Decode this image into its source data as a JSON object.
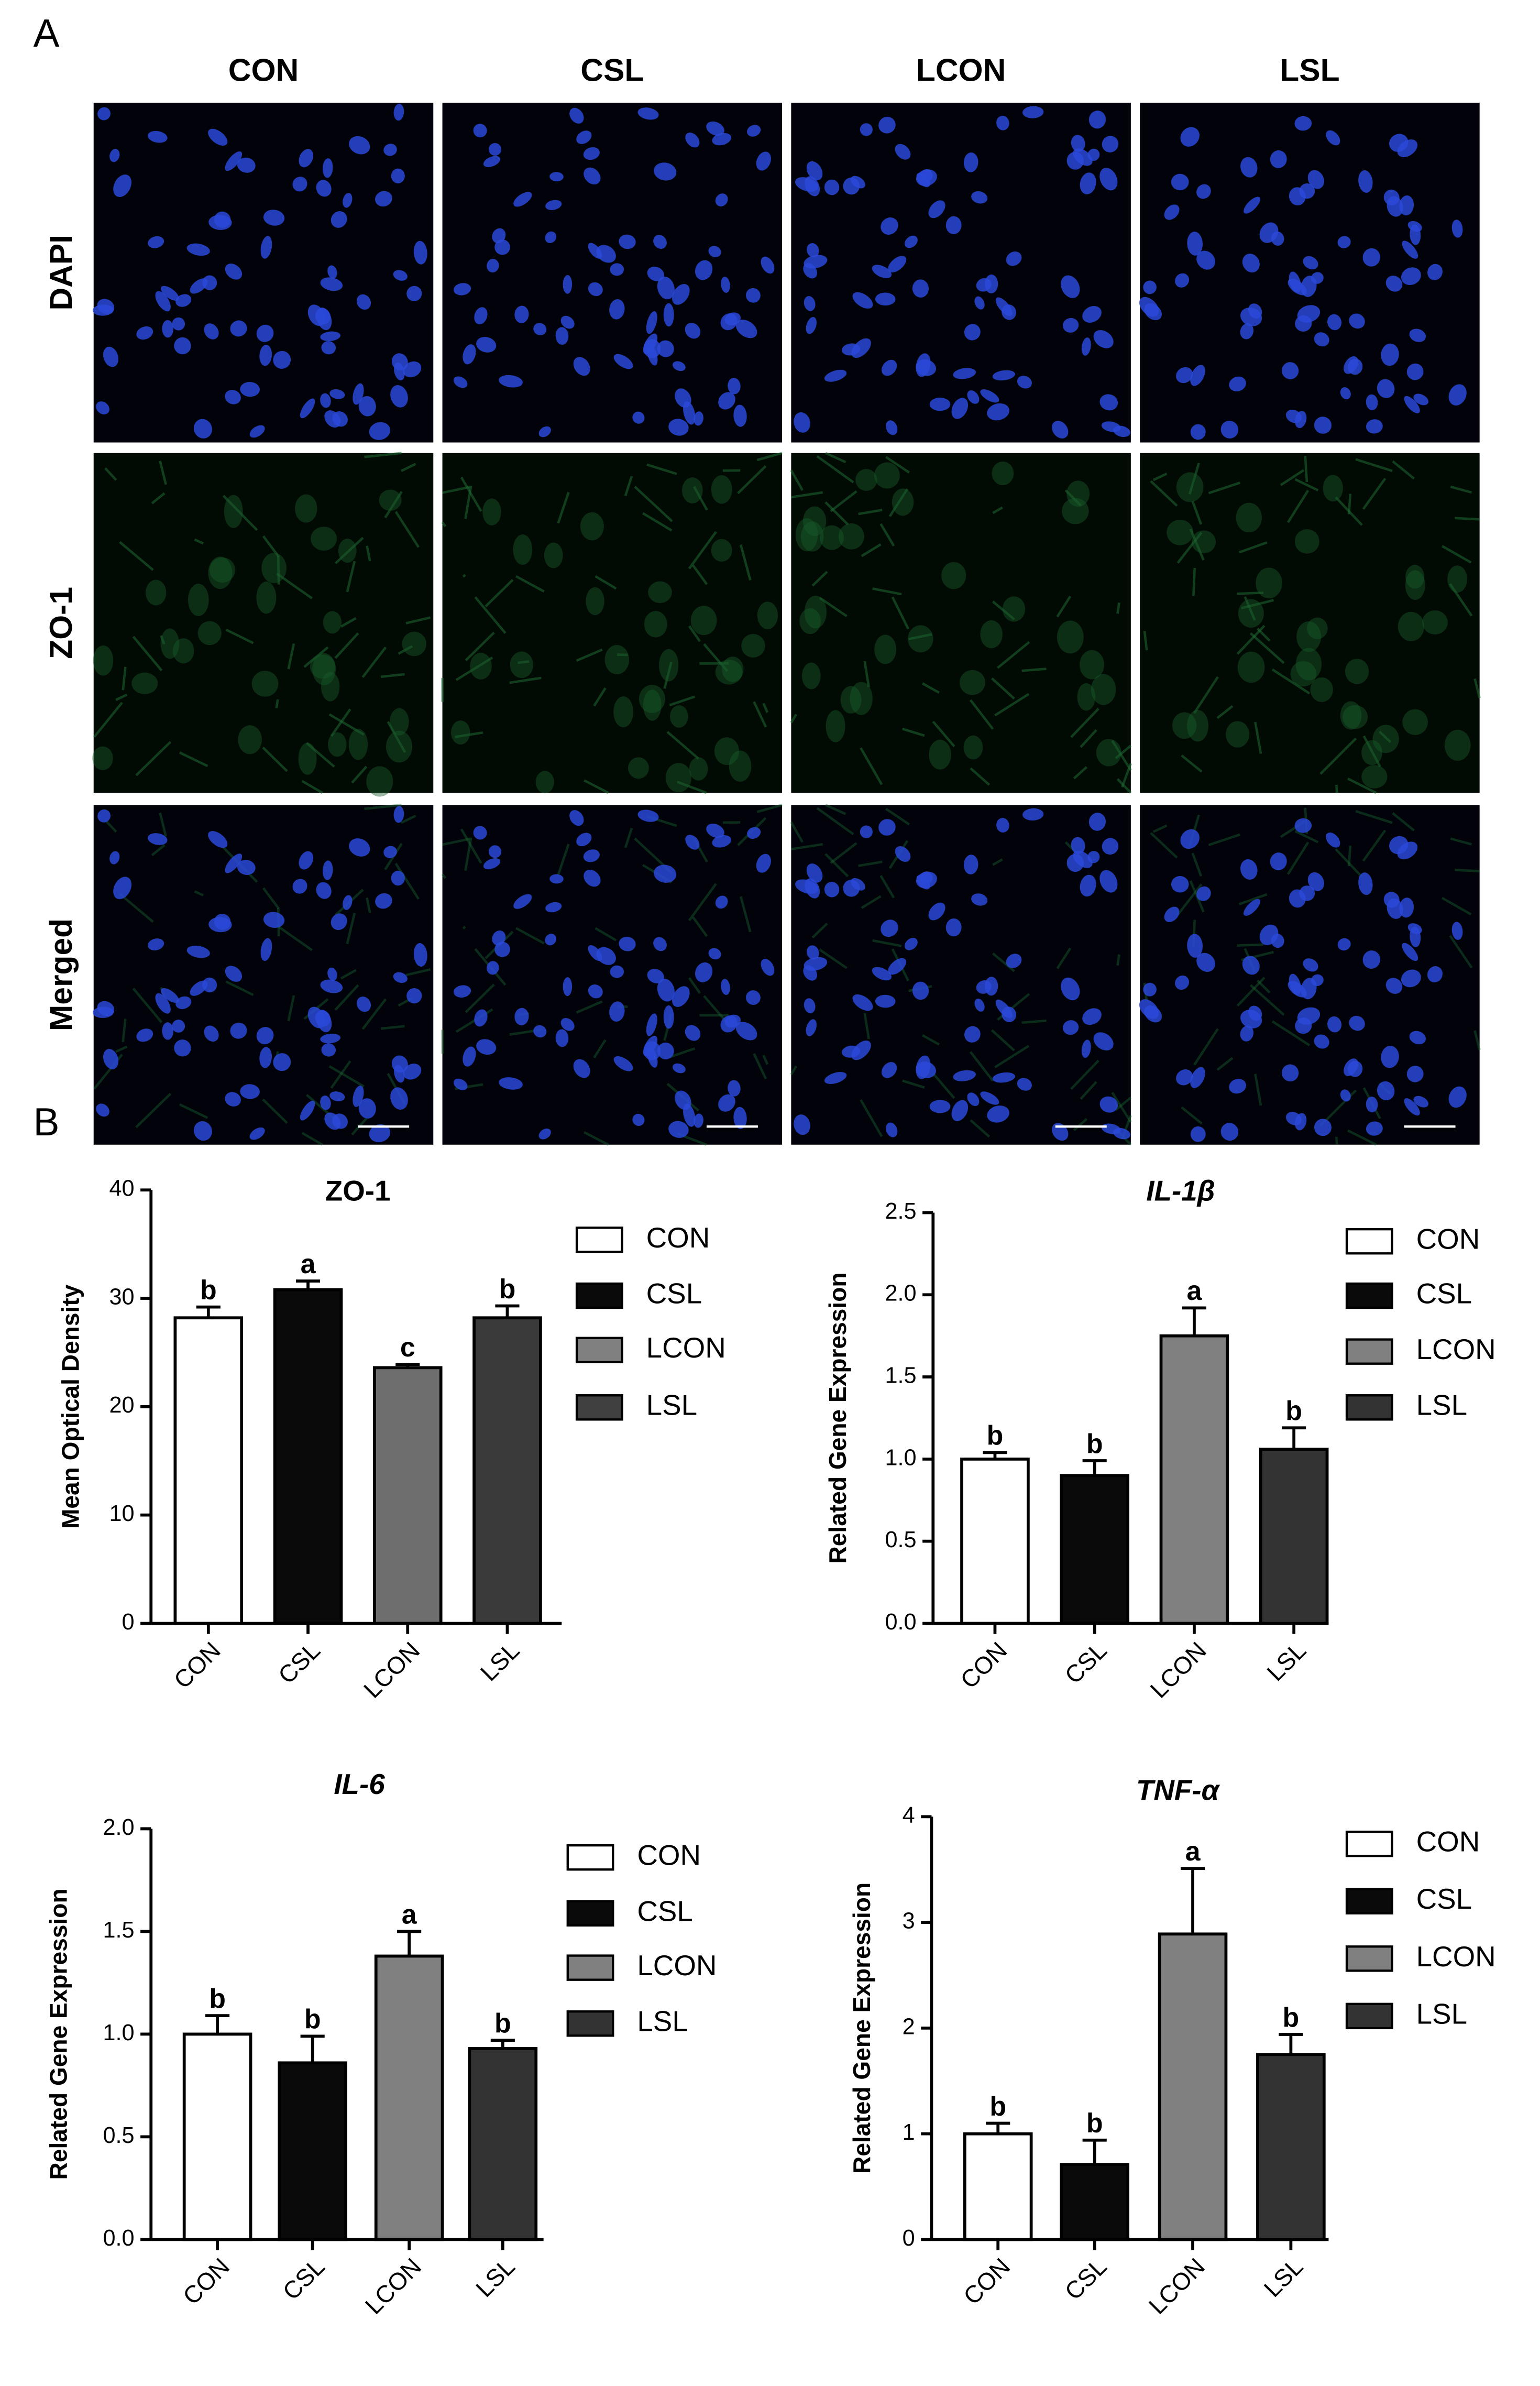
{
  "panel_a": {
    "label": "A",
    "columns": [
      "CON",
      "CSL",
      "LCON",
      "LSL"
    ],
    "rows": [
      "DAPI",
      "ZO-1",
      "Merged"
    ]
  },
  "panel_b": {
    "label": "B"
  },
  "chart_data": [
    {
      "type": "bar",
      "title": "ZO-1",
      "title_italic": false,
      "y_label": "Mean Optical Density",
      "categories": [
        "CON",
        "CSL",
        "LCON",
        "LSL"
      ],
      "values": [
        28.2,
        30.8,
        23.6,
        28.2
      ],
      "errors": [
        1.0,
        0.8,
        0.3,
        1.1
      ],
      "letters": [
        "b",
        "a",
        "c",
        "b"
      ],
      "colors": [
        "#ffffff",
        "#0a0a0a",
        "#6e6e6e",
        "#3a3a3a"
      ],
      "legend_colors": [
        "#ffffff",
        "#0a0a0a",
        "#808080",
        "#404040"
      ],
      "ylim": [
        0,
        40
      ],
      "yticks": [
        0,
        10,
        20,
        30,
        40
      ]
    },
    {
      "type": "bar",
      "title": "IL-1β",
      "title_italic": true,
      "y_label": "Related Gene Expression",
      "categories": [
        "CON",
        "CSL",
        "LCON",
        "LSL"
      ],
      "values": [
        1.0,
        0.9,
        1.75,
        1.06
      ],
      "errors": [
        0.04,
        0.09,
        0.17,
        0.13
      ],
      "letters": [
        "b",
        "b",
        "a",
        "b"
      ],
      "colors": [
        "#ffffff",
        "#0a0a0a",
        "#808080",
        "#333333"
      ],
      "legend_colors": [
        "#ffffff",
        "#0a0a0a",
        "#808080",
        "#333333"
      ],
      "ylim": [
        0,
        2.5
      ],
      "yticks": [
        {
          "value": 0,
          "label": "0.0"
        },
        0.5,
        {
          "value": 1,
          "label": "1.0"
        },
        1.5,
        {
          "value": 2,
          "label": "2.0"
        },
        2.5
      ]
    },
    {
      "type": "bar",
      "title": "IL-6",
      "title_italic": true,
      "y_label": "Related Gene Expression",
      "categories": [
        "CON",
        "CSL",
        "LCON",
        "LSL"
      ],
      "values": [
        1.0,
        0.86,
        1.38,
        0.93
      ],
      "errors": [
        0.09,
        0.13,
        0.12,
        0.04
      ],
      "letters": [
        "b",
        "b",
        "a",
        "b"
      ],
      "colors": [
        "#ffffff",
        "#0a0a0a",
        "#808080",
        "#333333"
      ],
      "legend_colors": [
        "#ffffff",
        "#0a0a0a",
        "#808080",
        "#333333"
      ],
      "ylim": [
        0,
        2
      ],
      "yticks": [
        {
          "value": 0,
          "label": "0.0"
        },
        0.5,
        {
          "value": 1,
          "label": "1.0"
        },
        1.5,
        {
          "value": 2,
          "label": "2.0"
        }
      ]
    },
    {
      "type": "bar",
      "title": "TNF-α",
      "title_italic": true,
      "y_label": "Related Gene Expression",
      "categories": [
        "CON",
        "CSL",
        "LCON",
        "LSL"
      ],
      "values": [
        1.0,
        0.71,
        2.89,
        1.75
      ],
      "errors": [
        0.1,
        0.23,
        0.62,
        0.19
      ],
      "letters": [
        "b",
        "b",
        "a",
        "b"
      ],
      "colors": [
        "#ffffff",
        "#0a0a0a",
        "#808080",
        "#333333"
      ],
      "legend_colors": [
        "#ffffff",
        "#0a0a0a",
        "#808080",
        "#333333"
      ],
      "ylim": [
        0,
        4
      ],
      "yticks": [
        0,
        1,
        2,
        3,
        4
      ]
    }
  ]
}
